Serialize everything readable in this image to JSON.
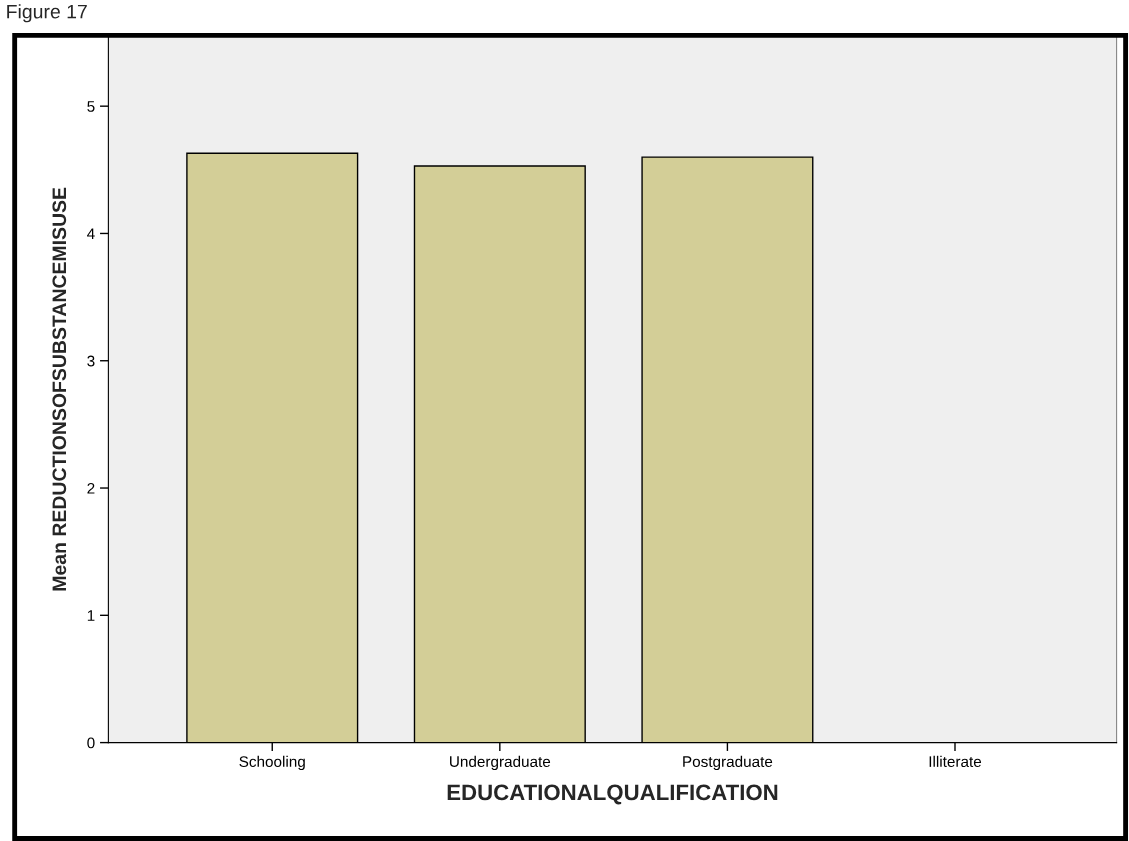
{
  "chart_data": {
    "type": "bar",
    "title": "Figure 17",
    "categories": [
      "Schooling",
      "Undergraduate",
      "Postgraduate",
      "Illiterate"
    ],
    "values": [
      4.63,
      4.53,
      4.6,
      null
    ],
    "color": "#d3ce97",
    "xlabel": "EDUCATIONALQUALIFICATION",
    "ylabel": "Mean REDUCTIONSOFSUBSTANCEMISUSE",
    "ylim": [
      0,
      5.55
    ],
    "yticks": [
      0,
      1,
      2,
      3,
      4,
      5
    ],
    "grid": false,
    "legend": false
  }
}
